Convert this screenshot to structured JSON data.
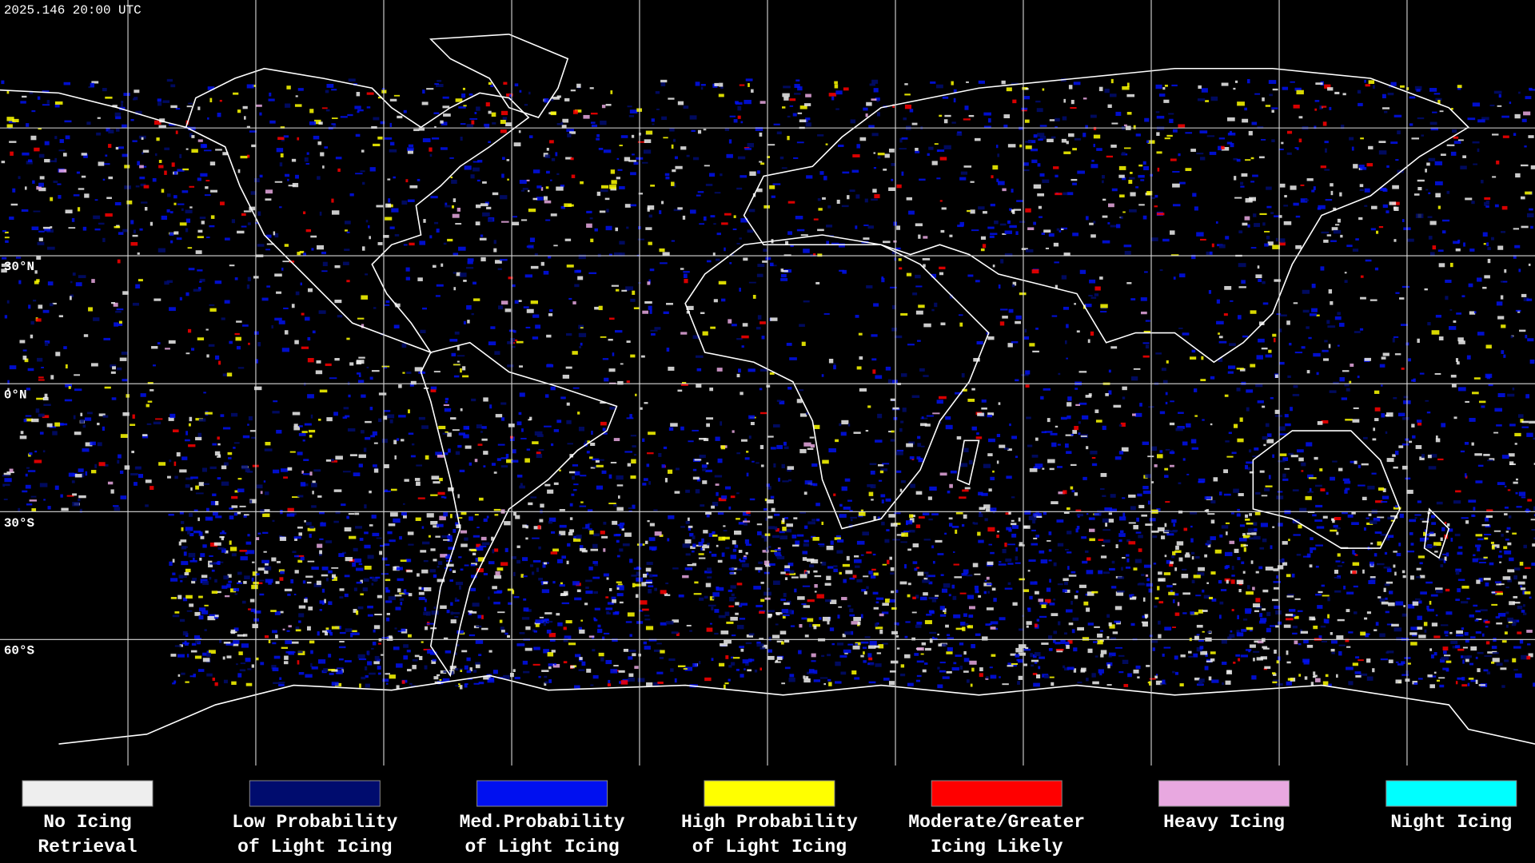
{
  "header": {
    "timestamp": "2025.146 20:00 UTC"
  },
  "map": {
    "latitude_labels": [
      "30°N",
      "0°N",
      "30°S",
      "60°S"
    ]
  },
  "legend": {
    "items": [
      {
        "lines": [
          "No Icing",
          "Retrieval"
        ],
        "color": "#eeeeee"
      },
      {
        "lines": [
          "Low Probability",
          "of Light Icing"
        ],
        "color": "#000c6e"
      },
      {
        "lines": [
          "Med.Probability",
          "of Light Icing"
        ],
        "color": "#0010f0"
      },
      {
        "lines": [
          "High Probability",
          "of Light Icing"
        ],
        "color": "#ffff00"
      },
      {
        "lines": [
          "Moderate/Greater",
          "Icing Likely"
        ],
        "color": "#ff0000"
      },
      {
        "lines": [
          "Heavy Icing"
        ],
        "color": "#e8a8e0"
      },
      {
        "lines": [
          "Night Icing"
        ],
        "color": "#00ffff"
      }
    ]
  }
}
